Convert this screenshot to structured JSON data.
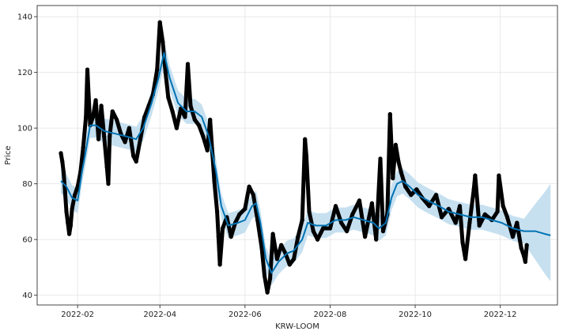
{
  "chart_data": {
    "type": "line",
    "title": "",
    "xlabel": "KRW-LOOM",
    "ylabel": "Price",
    "x_range": [
      "2022-01-03",
      "2023-01-11"
    ],
    "ylim": [
      36.5,
      144
    ],
    "x_ticks": [
      {
        "date": "2022-02-01",
        "label": "2022-02"
      },
      {
        "date": "2022-04-01",
        "label": "2022-04"
      },
      {
        "date": "2022-06-01",
        "label": "2022-06"
      },
      {
        "date": "2022-08-01",
        "label": "2022-08"
      },
      {
        "date": "2022-10-01",
        "label": "2022-10"
      },
      {
        "date": "2022-12-01",
        "label": "2022-12"
      }
    ],
    "y_ticks": [
      40,
      60,
      80,
      100,
      120,
      140
    ],
    "grid": true,
    "legend": "none",
    "colors": {
      "forecast_line": "#0072B2",
      "uncertainty_band": "#bcdaed",
      "observations": "#000000",
      "grid": "#e3e3e3",
      "frame": "#333333"
    },
    "series": [
      {
        "kind": "forecast",
        "points": [
          [
            "2022-01-20",
            81
          ],
          [
            "2022-01-24",
            79
          ],
          [
            "2022-01-28",
            75
          ],
          [
            "2022-02-01",
            74
          ],
          [
            "2022-02-04",
            84
          ],
          [
            "2022-02-07",
            92
          ],
          [
            "2022-02-10",
            101
          ],
          [
            "2022-02-14",
            101
          ],
          [
            "2022-02-20",
            99
          ],
          [
            "2022-02-28",
            98
          ],
          [
            "2022-03-08",
            97
          ],
          [
            "2022-03-15",
            96
          ],
          [
            "2022-03-20",
            100
          ],
          [
            "2022-03-26",
            109
          ],
          [
            "2022-03-31",
            118
          ],
          [
            "2022-04-04",
            127
          ],
          [
            "2022-04-08",
            118
          ],
          [
            "2022-04-14",
            109
          ],
          [
            "2022-04-20",
            106
          ],
          [
            "2022-04-26",
            106
          ],
          [
            "2022-05-01",
            104
          ],
          [
            "2022-05-06",
            97
          ],
          [
            "2022-05-11",
            85
          ],
          [
            "2022-05-15",
            72
          ],
          [
            "2022-05-20",
            65
          ],
          [
            "2022-05-27",
            66
          ],
          [
            "2022-06-01",
            67
          ],
          [
            "2022-06-06",
            72
          ],
          [
            "2022-06-09",
            73
          ],
          [
            "2022-06-12",
            66
          ],
          [
            "2022-06-16",
            53
          ],
          [
            "2022-06-20",
            48
          ],
          [
            "2022-06-25",
            52
          ],
          [
            "2022-07-01",
            55
          ],
          [
            "2022-07-06",
            56
          ],
          [
            "2022-07-12",
            60
          ],
          [
            "2022-07-16",
            66
          ],
          [
            "2022-07-22",
            65
          ],
          [
            "2022-07-29",
            65
          ],
          [
            "2022-08-05",
            67
          ],
          [
            "2022-08-12",
            67
          ],
          [
            "2022-08-18",
            68
          ],
          [
            "2022-08-25",
            67
          ],
          [
            "2022-09-01",
            66
          ],
          [
            "2022-09-05",
            64
          ],
          [
            "2022-09-10",
            66
          ],
          [
            "2022-09-14",
            75
          ],
          [
            "2022-09-18",
            80
          ],
          [
            "2022-09-22",
            81
          ],
          [
            "2022-09-27",
            79
          ],
          [
            "2022-10-03",
            76
          ],
          [
            "2022-10-10",
            74
          ],
          [
            "2022-10-18",
            72
          ],
          [
            "2022-10-25",
            70
          ],
          [
            "2022-11-02",
            69
          ],
          [
            "2022-11-10",
            68
          ],
          [
            "2022-11-18",
            68
          ],
          [
            "2022-11-25",
            67
          ],
          [
            "2022-12-02",
            66
          ],
          [
            "2022-12-10",
            64
          ],
          [
            "2022-12-18",
            63
          ],
          [
            "2022-12-26",
            63
          ],
          [
            "2023-01-02",
            62
          ],
          [
            "2023-01-06",
            61.5
          ]
        ]
      },
      {
        "kind": "uncertainty",
        "half_width": 4.5,
        "end_fan": {
          "from_date": "2022-12-18",
          "lower_end": 45,
          "upper_end": 80
        }
      },
      {
        "kind": "observations",
        "points": [
          [
            "2022-01-20",
            91
          ],
          [
            "2022-01-21",
            88
          ],
          [
            "2022-01-22",
            84
          ],
          [
            "2022-01-23",
            77
          ],
          [
            "2022-01-24",
            70
          ],
          [
            "2022-01-25",
            66
          ],
          [
            "2022-01-26",
            62
          ],
          [
            "2022-01-27",
            65
          ],
          [
            "2022-01-28",
            71
          ],
          [
            "2022-01-30",
            76
          ],
          [
            "2022-02-01",
            79
          ],
          [
            "2022-02-03",
            84
          ],
          [
            "2022-02-05",
            93
          ],
          [
            "2022-02-07",
            104
          ],
          [
            "2022-02-08",
            121
          ],
          [
            "2022-02-10",
            101
          ],
          [
            "2022-02-12",
            104
          ],
          [
            "2022-02-14",
            110
          ],
          [
            "2022-02-16",
            96
          ],
          [
            "2022-02-18",
            108
          ],
          [
            "2022-02-20",
            97
          ],
          [
            "2022-02-22",
            86
          ],
          [
            "2022-02-23",
            80
          ],
          [
            "2022-02-24",
            97
          ],
          [
            "2022-02-26",
            106
          ],
          [
            "2022-03-01",
            103
          ],
          [
            "2022-03-04",
            98
          ],
          [
            "2022-03-07",
            95
          ],
          [
            "2022-03-10",
            100
          ],
          [
            "2022-03-13",
            90
          ],
          [
            "2022-03-15",
            88
          ],
          [
            "2022-03-18",
            96
          ],
          [
            "2022-03-21",
            104
          ],
          [
            "2022-03-24",
            108
          ],
          [
            "2022-03-27",
            112
          ],
          [
            "2022-03-30",
            121
          ],
          [
            "2022-04-01",
            138
          ],
          [
            "2022-04-03",
            131
          ],
          [
            "2022-04-05",
            120
          ],
          [
            "2022-04-07",
            111
          ],
          [
            "2022-04-10",
            106
          ],
          [
            "2022-04-13",
            100
          ],
          [
            "2022-04-16",
            107
          ],
          [
            "2022-04-19",
            104
          ],
          [
            "2022-04-21",
            123
          ],
          [
            "2022-04-23",
            108
          ],
          [
            "2022-04-26",
            103
          ],
          [
            "2022-04-29",
            101
          ],
          [
            "2022-05-02",
            97
          ],
          [
            "2022-05-05",
            92
          ],
          [
            "2022-05-07",
            103
          ],
          [
            "2022-05-10",
            81
          ],
          [
            "2022-05-12",
            70
          ],
          [
            "2022-05-13",
            61
          ],
          [
            "2022-05-14",
            51
          ],
          [
            "2022-05-16",
            64
          ],
          [
            "2022-05-19",
            68
          ],
          [
            "2022-05-22",
            61
          ],
          [
            "2022-05-25",
            66
          ],
          [
            "2022-05-28",
            69
          ],
          [
            "2022-06-01",
            71
          ],
          [
            "2022-06-04",
            79
          ],
          [
            "2022-06-07",
            76
          ],
          [
            "2022-06-10",
            67
          ],
          [
            "2022-06-13",
            57
          ],
          [
            "2022-06-15",
            47
          ],
          [
            "2022-06-17",
            41
          ],
          [
            "2022-06-19",
            46
          ],
          [
            "2022-06-21",
            62
          ],
          [
            "2022-06-24",
            53
          ],
          [
            "2022-06-27",
            58
          ],
          [
            "2022-06-30",
            55
          ],
          [
            "2022-07-03",
            51
          ],
          [
            "2022-07-06",
            53
          ],
          [
            "2022-07-09",
            61
          ],
          [
            "2022-07-12",
            67
          ],
          [
            "2022-07-14",
            96
          ],
          [
            "2022-07-15",
            90
          ],
          [
            "2022-07-17",
            70
          ],
          [
            "2022-07-20",
            63
          ],
          [
            "2022-07-23",
            60
          ],
          [
            "2022-07-27",
            64
          ],
          [
            "2022-08-01",
            64
          ],
          [
            "2022-08-05",
            72
          ],
          [
            "2022-08-09",
            66
          ],
          [
            "2022-08-13",
            63
          ],
          [
            "2022-08-17",
            69
          ],
          [
            "2022-08-22",
            74
          ],
          [
            "2022-08-26",
            61
          ],
          [
            "2022-08-31",
            73
          ],
          [
            "2022-09-03",
            60
          ],
          [
            "2022-09-06",
            89
          ],
          [
            "2022-09-08",
            63
          ],
          [
            "2022-09-11",
            69
          ],
          [
            "2022-09-13",
            105
          ],
          [
            "2022-09-15",
            82
          ],
          [
            "2022-09-17",
            94
          ],
          [
            "2022-09-19",
            88
          ],
          [
            "2022-09-21",
            84
          ],
          [
            "2022-09-24",
            79
          ],
          [
            "2022-09-28",
            76
          ],
          [
            "2022-10-02",
            78
          ],
          [
            "2022-10-06",
            75
          ],
          [
            "2022-10-11",
            72
          ],
          [
            "2022-10-16",
            76
          ],
          [
            "2022-10-20",
            68
          ],
          [
            "2022-10-25",
            71
          ],
          [
            "2022-10-30",
            66
          ],
          [
            "2022-11-02",
            72
          ],
          [
            "2022-11-04",
            59
          ],
          [
            "2022-11-06",
            53
          ],
          [
            "2022-11-09",
            66
          ],
          [
            "2022-11-12",
            78
          ],
          [
            "2022-11-13",
            83
          ],
          [
            "2022-11-16",
            65
          ],
          [
            "2022-11-20",
            69
          ],
          [
            "2022-11-25",
            67
          ],
          [
            "2022-11-29",
            70
          ],
          [
            "2022-11-30",
            83
          ],
          [
            "2022-12-03",
            72
          ],
          [
            "2022-12-06",
            68
          ],
          [
            "2022-12-10",
            61
          ],
          [
            "2022-12-13",
            66
          ],
          [
            "2022-12-16",
            57
          ],
          [
            "2022-12-18",
            54
          ],
          [
            "2022-12-19",
            52
          ],
          [
            "2022-12-20",
            58
          ]
        ]
      }
    ]
  }
}
